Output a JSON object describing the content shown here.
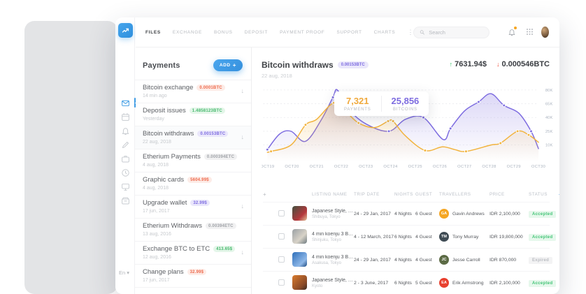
{
  "colors": {
    "accent": "#3d9be4",
    "purple": "#7d6ce0",
    "yellow": "#f2b33d",
    "green": "#43c476",
    "red": "#ee6a4d"
  },
  "icons": {
    "arrow_down": "↓",
    "arrow_up": "↑",
    "dots_vertical": "⋮",
    "ellipsis": "⋯",
    "chevron_left": "◂",
    "chevron_right": "▸",
    "caret_down": "▾",
    "plus": "+"
  },
  "nav": {
    "items": [
      {
        "label": "FILES",
        "active": true
      },
      {
        "label": "EXCHANGE",
        "active": false
      },
      {
        "label": "BONUS",
        "active": false
      },
      {
        "label": "DEPOSIT",
        "active": false
      },
      {
        "label": "PAYMENT PROOF",
        "active": false
      },
      {
        "label": "SUPPORT",
        "active": false
      },
      {
        "label": "CHARTS",
        "active": false
      }
    ],
    "search_placeholder": "Search"
  },
  "sidebar": {
    "icons": [
      {
        "name": "mail",
        "active": true
      },
      {
        "name": "calendar",
        "active": false
      },
      {
        "name": "bell",
        "active": false
      },
      {
        "name": "edit",
        "active": false
      },
      {
        "name": "briefcase",
        "active": false
      },
      {
        "name": "clock",
        "active": false
      },
      {
        "name": "monitor",
        "active": false
      },
      {
        "name": "archive",
        "active": false
      }
    ],
    "language": "En"
  },
  "payments": {
    "title": "Payments",
    "add_label": "ADD",
    "items": [
      {
        "name": "Bitcoin exchange",
        "badge": "0.0001BTC",
        "badge_color": "red",
        "date": "14 min ago",
        "has_arrow": true
      },
      {
        "name": "Deposit issues",
        "badge": "1.4858123BTC",
        "badge_color": "green",
        "date": "Yesterday",
        "has_arrow": false
      },
      {
        "name": "Bitcoin withdraws",
        "badge": "0.00153BTC",
        "badge_color": "purple",
        "date": "22 aug, 2018",
        "has_arrow": true,
        "selected": true
      },
      {
        "name": "Etherium Payments",
        "badge": "0.000394ETC",
        "badge_color": "gray",
        "date": "4 aug, 2018",
        "has_arrow": false
      },
      {
        "name": "Graphic cards",
        "badge": "5604.99$",
        "badge_color": "red",
        "date": "4 aug, 2018",
        "has_arrow": false
      },
      {
        "name": "Upgrade wallet",
        "badge": "32.99$",
        "badge_color": "purple",
        "date": "17 jun, 2017",
        "has_arrow": true
      },
      {
        "name": "Etherium Withdraws",
        "badge": "0.00394ETC",
        "badge_color": "gray",
        "date": "13 aug, 2016",
        "has_arrow": false
      },
      {
        "name": "Exchange BTC to ETC",
        "badge": "413.65$",
        "badge_color": "green",
        "date": "12 aug, 2016",
        "has_arrow": true
      },
      {
        "name": "Change plans",
        "badge": "32.99$",
        "badge_color": "red",
        "date": "17 jun, 2017",
        "has_arrow": false
      }
    ]
  },
  "chart_header": {
    "title": "Bitcoin withdraws",
    "badge": "0.00153BTC",
    "date": "22 aug, 2018",
    "stat_up": "7631.94$",
    "stat_down": "0.000546BTC"
  },
  "chart_data": {
    "type": "line",
    "x_labels": [
      "OCT19",
      "OCT20",
      "OCT21",
      "OCT22",
      "OCT23",
      "OCT24",
      "OCT25",
      "OCT26",
      "OCT27",
      "OCT28",
      "OCT29",
      "OCT30"
    ],
    "y_ticks": {
      "labels": [
        "80K",
        "65K",
        "40K",
        "25K",
        "10K"
      ],
      "values": [
        80,
        65,
        40,
        25,
        10
      ]
    },
    "grid": "dashed",
    "legend_position": "none",
    "series": [
      {
        "name": "bitcoins",
        "color": "#7d6ce0",
        "points": [
          [
            0,
            5
          ],
          [
            0.5,
            22
          ],
          [
            0.96,
            25
          ],
          [
            1.55,
            14
          ],
          [
            2.2,
            38
          ],
          [
            2.66,
            72
          ],
          [
            2.84,
            80
          ],
          [
            3.3,
            55
          ],
          [
            4,
            33
          ],
          [
            4.93,
            25
          ],
          [
            5.6,
            38
          ],
          [
            6.33,
            40
          ],
          [
            7.13,
            16
          ],
          [
            7.43,
            28
          ],
          [
            8.0,
            52
          ],
          [
            8.57,
            67
          ],
          [
            9.07,
            76
          ],
          [
            9.6,
            62
          ],
          [
            10.2,
            48
          ],
          [
            10.7,
            25
          ],
          [
            11,
            6
          ]
        ],
        "dots": [
          [
            0,
            5
          ],
          [
            2.66,
            72
          ],
          [
            4.93,
            25
          ],
          [
            6.33,
            40
          ],
          [
            7.43,
            28
          ],
          [
            8.57,
            67
          ],
          [
            9.6,
            62
          ],
          [
            10.7,
            25
          ]
        ]
      },
      {
        "name": "payments",
        "color": "#f2b33d",
        "points": [
          [
            0,
            2
          ],
          [
            0.15,
            3
          ],
          [
            0.96,
            10
          ],
          [
            1.55,
            32
          ],
          [
            2,
            38
          ],
          [
            2.7,
            66
          ],
          [
            3.2,
            50
          ],
          [
            3.7,
            34
          ],
          [
            4.35,
            29
          ],
          [
            4.9,
            36
          ],
          [
            5.1,
            36
          ],
          [
            5.6,
            20
          ],
          [
            6.4,
            4
          ],
          [
            7.1,
            8
          ],
          [
            7.6,
            5
          ],
          [
            8.06,
            3
          ],
          [
            9.07,
            10
          ],
          [
            9.46,
            12
          ],
          [
            10.15,
            25
          ],
          [
            10.6,
            21
          ],
          [
            11,
            13
          ]
        ],
        "dots": [
          [
            0.15,
            3
          ],
          [
            1.55,
            32
          ],
          [
            2.7,
            66
          ],
          [
            3.7,
            34
          ],
          [
            4.9,
            36
          ],
          [
            5.1,
            36
          ],
          [
            6.4,
            4
          ],
          [
            8.06,
            3
          ],
          [
            9.46,
            12
          ],
          [
            10.15,
            25
          ],
          [
            10.6,
            21
          ]
        ]
      }
    ],
    "tooltip": {
      "payments": "7,321",
      "payments_label": "PAYMENTS",
      "bitcoins": "25,856",
      "bitcoins_label": "BITCOINS"
    }
  },
  "table": {
    "headers": [
      "LISTING NAME",
      "TRIP DATE",
      "NIGHTS",
      "GUEST",
      "TRAVELLERS",
      "PRICE",
      "STATUS"
    ],
    "rows": [
      {
        "listing": "Japanese Style, Tatami...",
        "location": "Shibuya, Tokyo",
        "trip_date": "24 - 29 Jan, 2017",
        "nights": "4 Nights",
        "guest": "6 Guest",
        "traveller": "Gavin Andrews",
        "traveller_initials": "GA",
        "traveller_color": "#f5a623",
        "price": "IDR 2,100,000",
        "status": "Accepted",
        "status_color": "green"
      },
      {
        "listing": "4 min koenju 3 Bedroo...",
        "location": "Shinjuku, Tokyo",
        "trip_date": "4 - 12 March, 2017",
        "nights": "6 Nights",
        "guest": "4 Guest",
        "traveller": "Tony Murray",
        "traveller_initials": "TM",
        "traveller_color": "#3f4b54",
        "price": "IDR 19,800,000",
        "status": "Accepted",
        "status_color": "green"
      },
      {
        "listing": "4 min koenju 3 Bedroo...",
        "location": "Asakusa, Tokyo",
        "trip_date": "24 - 29 Jan, 2017",
        "nights": "4 Nights",
        "guest": "4 Guest",
        "traveller": "Jesse Carroll",
        "traveller_initials": "JC",
        "traveller_color": "#5c6b45",
        "price": "IDR 870,000",
        "status": "Expired",
        "status_color": "gray"
      },
      {
        "listing": "Japanese Style, Tatami...",
        "location": "Kyoto",
        "trip_date": "2 - 3 June, 2017",
        "nights": "6 Nights",
        "guest": "5 Guest",
        "traveller": "Erik Armstrong",
        "traveller_initials": "EA",
        "traveller_color": "#e8402f",
        "price": "IDR 2,100,000",
        "status": "Accepted",
        "status_color": "green"
      }
    ]
  }
}
